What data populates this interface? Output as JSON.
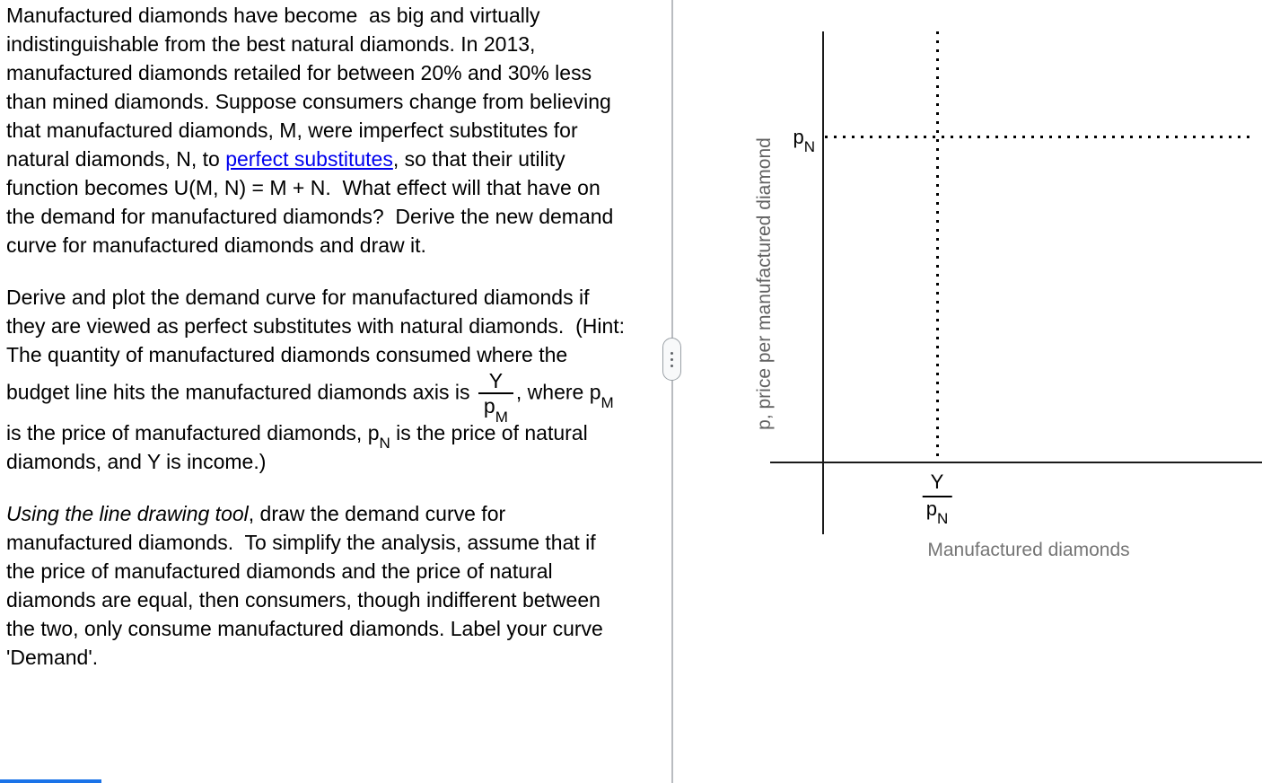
{
  "problem": {
    "paragraph1": {
      "before_link": "Manufactured diamonds have become  as big and virtually indistinguishable from the best natural diamonds. In 2013, manufactured diamonds retailed for between 20% and 30% less than mined diamonds. Suppose consumers change from believing that manufactured diamonds, M, were imperfect substitutes for natural diamonds, N, to ",
      "link": "perfect substitutes",
      "after_link": ", so that their utility function becomes U(M, N) = M + N.  What effect will that have on the demand for manufactured diamonds?  Derive the new demand curve for manufactured diamonds and draw it."
    },
    "paragraph2": {
      "before_fraction": "Derive and plot the demand curve for manufactured diamonds if they are viewed as perfect substitutes with natural diamonds.  (Hint:  The quantity of manufactured diamonds consumed where the budget line hits the manufactured diamonds axis is ",
      "fraction": {
        "numerator": "Y",
        "denominator_base": "p",
        "denominator_sub": "M"
      },
      "after_fraction": ", where p",
      "sub_m": "M",
      "mid": " is the price of manufactured diamonds, p",
      "sub_n": "N",
      "end": " is the price of natural diamonds, and Y is income.)"
    },
    "paragraph3": {
      "italic": "Using the line drawing tool",
      "rest": ", draw the demand curve for manufactured diamonds.  To simplify the analysis, assume that if the price of manufactured diamonds and the price of natural diamonds are equal, then consumers, though indifferent between the two, only consume manufactured diamonds. Label your curve 'Demand'."
    }
  },
  "graph": {
    "y_axis_label": "p, price per manufactured diamond",
    "x_axis_label": "Manufactured diamonds",
    "price_label": {
      "base": "p",
      "sub": "N"
    },
    "quantity_label": {
      "numerator": "Y",
      "denominator_base": "p",
      "denominator_sub": "N"
    },
    "reference_lines": [
      {
        "orientation": "horizontal",
        "style": "dotted",
        "value_label": "pN"
      },
      {
        "orientation": "vertical",
        "style": "dotted",
        "value_label": "Y/pN"
      }
    ]
  },
  "divider": {
    "icon": "vertical-drag-dots"
  },
  "colors": {
    "link_blue": "#0000EE",
    "axis_black": "#1a1a1a",
    "x_label_gray": "#757575",
    "scroll_indicator_blue": "#1a73e8"
  }
}
